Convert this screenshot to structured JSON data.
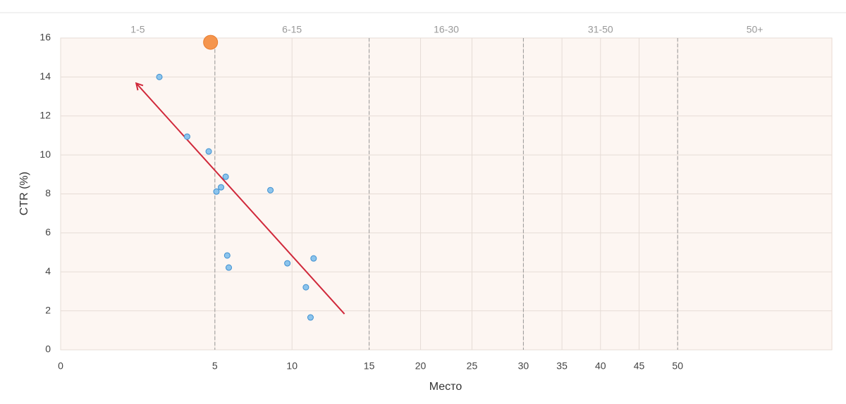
{
  "chart_data": {
    "type": "scatter",
    "x_label": "Место",
    "y_label": "CTR (%)",
    "bands": [
      "1-5",
      "6-15",
      "16-30",
      "31-50",
      "50+"
    ],
    "band_breaks": [
      0,
      5,
      15,
      30,
      50
    ],
    "xticks": [
      0,
      5,
      10,
      15,
      20,
      25,
      30,
      35,
      40,
      45,
      50
    ],
    "ylim": [
      0,
      16
    ],
    "yticks": [
      0,
      2,
      4,
      6,
      8,
      10,
      12,
      14,
      16
    ],
    "grid": true,
    "points": {
      "color": "#8cc4ec",
      "stroke": "#3d8fd0",
      "x": [
        3.2,
        4.1,
        4.8,
        5.1,
        5.4,
        5.7,
        5.8,
        5.9,
        8.6,
        9.7,
        10.9,
        11.4,
        11.2
      ],
      "y": [
        14.0,
        10.94,
        10.18,
        8.12,
        8.34,
        8.88,
        4.84,
        4.22,
        8.19,
        4.44,
        3.21,
        4.69,
        1.66
      ]
    },
    "highlight": {
      "color": "#f5954d",
      "stroke": "#e87d2f",
      "x": [
        4.86
      ],
      "y": [
        15.78
      ]
    },
    "trend": {
      "color": "#d0283a",
      "x": [
        13.4,
        2.45
      ],
      "y": [
        1.84,
        13.68
      ]
    }
  }
}
